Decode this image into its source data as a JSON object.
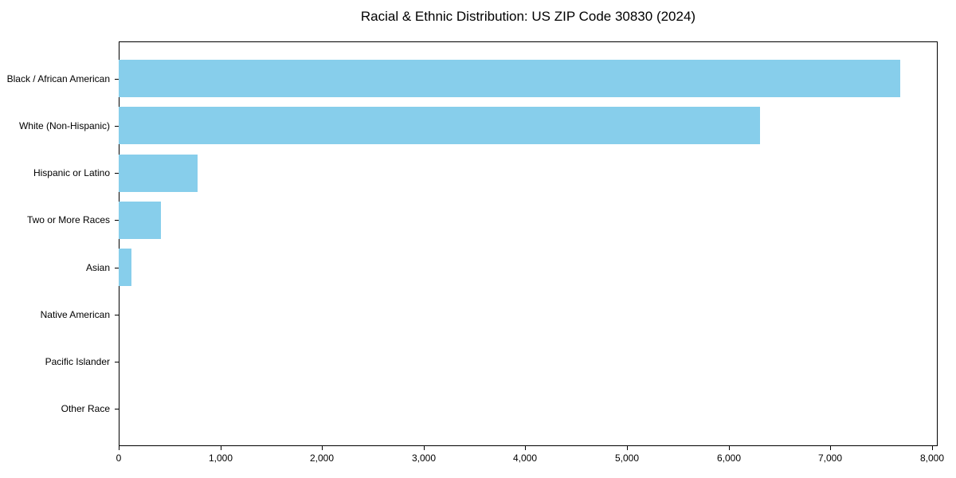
{
  "chart_data": {
    "type": "bar",
    "orientation": "horizontal",
    "title": "Racial & Ethnic Distribution: US ZIP Code 30830 (2024)",
    "categories": [
      "Black / African American",
      "White (Non-Hispanic)",
      "Hispanic or Latino",
      "Two or More Races",
      "Asian",
      "Native American",
      "Pacific Islander",
      "Other Race"
    ],
    "values": [
      7690,
      6310,
      775,
      415,
      125,
      0,
      0,
      0
    ],
    "xlabel": "",
    "ylabel": "",
    "xlim": [
      0,
      8055
    ],
    "xticks": [
      0,
      1000,
      2000,
      3000,
      4000,
      5000,
      6000,
      7000,
      8000
    ],
    "xtick_labels": [
      "0",
      "1,000",
      "2,000",
      "3,000",
      "4,000",
      "5,000",
      "6,000",
      "7,000",
      "8,000"
    ],
    "bar_color": "#87CEEB",
    "grid": false,
    "legend": null,
    "background_color": "#ffffff",
    "spine_color": "#000000"
  }
}
